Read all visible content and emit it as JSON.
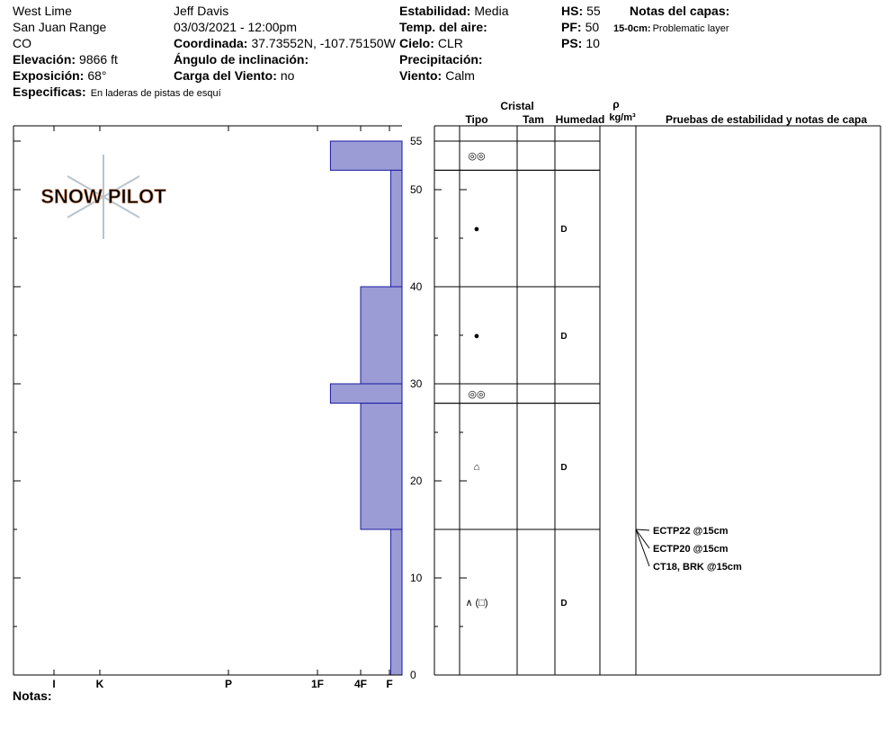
{
  "header": {
    "col1": [
      "West Lime",
      "San Juan Range",
      "CO",
      {
        "label": "Elevación:",
        "value": "9866 ft"
      },
      {
        "label": "Exposición:",
        "value": "68°"
      },
      {
        "label": "Especificas:",
        "value": "En laderas de pistas de esquí"
      }
    ],
    "col2": [
      "Jeff Davis",
      "03/03/2021 - 12:00pm",
      {
        "label": "Coordinada:",
        "value": "37.73552N, -107.75150W"
      },
      {
        "label": "Ángulo de inclinación:"
      },
      {
        "label": "Carga del Viento:",
        "value": "no"
      }
    ],
    "col3": [
      {
        "label": "Estabilidad:",
        "value": "Media"
      },
      {
        "label": "Temp. del aire:"
      },
      {
        "label": "Cielo:",
        "value": "CLR"
      },
      {
        "label": "Precipitación:"
      },
      {
        "label": "Viento:",
        "value": "Calm"
      }
    ],
    "col4": [
      {
        "label": "HS:",
        "value": "55"
      },
      {
        "label": "PF:",
        "value": "50"
      },
      {
        "label": "PS:",
        "value": "10"
      }
    ],
    "layer_notes": {
      "title": "Notas del capas:",
      "items": [
        {
          "label": "15-0cm:",
          "value": "Problematic layer"
        }
      ]
    }
  },
  "logo": "SNOW PILOT",
  "chart_data": {
    "type": "snow-profile",
    "ylim": [
      0,
      55
    ],
    "yticks": [
      0,
      10,
      20,
      30,
      40,
      50,
      55
    ],
    "hardness_ticks": [
      {
        "value": 6,
        "label": "I"
      },
      {
        "value": 5,
        "label": "K"
      },
      {
        "value": 4,
        "label": "P"
      },
      {
        "value": 3,
        "label": "1F"
      },
      {
        "value": 2,
        "label": "4F"
      },
      {
        "value": 1,
        "label": "F"
      }
    ],
    "color": "#9b9bd6",
    "columns": {
      "group": "Cristal",
      "type": "Tipo",
      "size": "Tam",
      "moisture": "Humedad",
      "density": "ρ",
      "density_unit": "kg/m³",
      "tests": "Pruebas de estabilidad y notas de capa"
    },
    "layers": [
      {
        "top": 55,
        "bottom": 52,
        "hardness": 2.7,
        "grain": "◎◎"
      },
      {
        "top": 52,
        "bottom": 40,
        "hardness": 0.9,
        "grain": "●",
        "moisture": "D"
      },
      {
        "top": 40,
        "bottom": 30,
        "hardness": 2,
        "grain": "●",
        "moisture": "D"
      },
      {
        "top": 30,
        "bottom": 28,
        "hardness": 2.7,
        "grain": "◎◎"
      },
      {
        "top": 28,
        "bottom": 15,
        "hardness": 2,
        "grain": "⌂",
        "moisture": "D"
      },
      {
        "top": 15,
        "bottom": 0,
        "hardness": 0.9,
        "grain": "∧ (□)",
        "moisture": "D"
      }
    ],
    "tests": [
      {
        "label": "ECTP22 @15cm",
        "depth": 15
      },
      {
        "label": "ECTP20 @15cm",
        "depth": 15
      },
      {
        "label": "CT18, BRK @15cm",
        "depth": 15
      }
    ]
  },
  "footer": {
    "notes": "Notas:"
  }
}
